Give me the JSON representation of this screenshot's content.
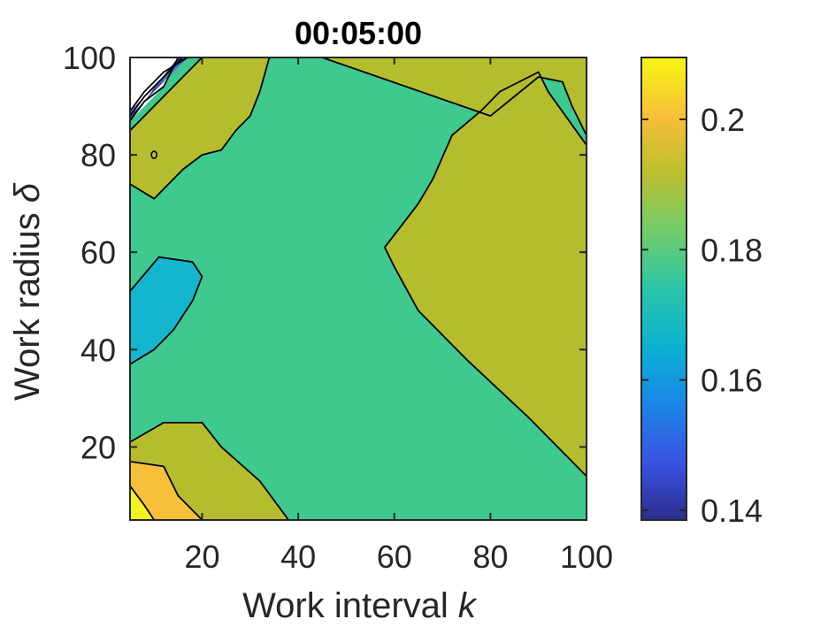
{
  "chart_data": {
    "type": "contourf",
    "title": "00:05:00",
    "xlabel": "Work interval",
    "xlabel_var": "k",
    "ylabel": "Work radius",
    "ylabel_var": "δ",
    "xlim": [
      5,
      100
    ],
    "ylim": [
      5,
      100
    ],
    "xticks": [
      20,
      40,
      60,
      80,
      100
    ],
    "yticks": [
      20,
      40,
      60,
      80,
      100
    ],
    "colorbar": {
      "range": [
        0.1385,
        0.2095
      ],
      "ticks": [
        0.14,
        0.16,
        0.18,
        0.2
      ],
      "tick_labels": [
        "0.14",
        "0.16",
        "0.18",
        "0.2"
      ],
      "colormap": "parula"
    },
    "regions": [
      {
        "name": "base",
        "level": 0.18,
        "color": "#3ec98f",
        "points": [
          [
            5,
            5
          ],
          [
            100,
            5
          ],
          [
            100,
            100
          ],
          [
            5,
            100
          ]
        ]
      },
      {
        "name": "upper-left",
        "level": 0.19,
        "color": "#b5bd2e",
        "points": [
          [
            5,
            100
          ],
          [
            5,
            85
          ],
          [
            8,
            88
          ],
          [
            12,
            92
          ],
          [
            16,
            96
          ],
          [
            20,
            100
          ],
          [
            34,
            100
          ],
          [
            32,
            93
          ],
          [
            30,
            88
          ],
          [
            27,
            85
          ],
          [
            24,
            81
          ],
          [
            20,
            80
          ],
          [
            16,
            77
          ],
          [
            10,
            71
          ],
          [
            5,
            74
          ]
        ]
      },
      {
        "name": "lower-left",
        "level": 0.19,
        "color": "#b5bd2e",
        "points": [
          [
            5,
            5
          ],
          [
            38,
            5
          ],
          [
            32,
            13
          ],
          [
            24,
            20
          ],
          [
            20,
            25
          ],
          [
            12,
            25
          ],
          [
            5,
            21
          ]
        ]
      },
      {
        "name": "right-wedge",
        "level": 0.19,
        "color": "#b5bd2e",
        "points": [
          [
            100,
            14
          ],
          [
            88,
            26
          ],
          [
            75,
            38
          ],
          [
            65,
            48
          ],
          [
            60,
            57
          ],
          [
            58,
            61
          ],
          [
            65,
            70
          ],
          [
            68,
            75
          ],
          [
            72,
            84
          ],
          [
            78,
            89
          ],
          [
            82,
            93
          ],
          [
            90,
            97
          ],
          [
            92,
            93
          ],
          [
            100,
            82
          ]
        ]
      },
      {
        "name": "top-corner",
        "level": 0.19,
        "color": "#b5bd2e",
        "points": [
          [
            45,
            100
          ],
          [
            100,
            100
          ],
          [
            100,
            84
          ],
          [
            97,
            90
          ],
          [
            95,
            95
          ],
          [
            90,
            96
          ],
          [
            80,
            88
          ]
        ]
      },
      {
        "name": "blue-pocket",
        "level": 0.17,
        "color": "#14b6cf",
        "points": [
          [
            5,
            37
          ],
          [
            10,
            40
          ],
          [
            14,
            44
          ],
          [
            18,
            50
          ],
          [
            20,
            55
          ],
          [
            18,
            58
          ],
          [
            11,
            59
          ],
          [
            5,
            52
          ]
        ]
      },
      {
        "name": "orange-corner",
        "level": 0.2,
        "color": "#f8c03a",
        "points": [
          [
            5,
            5
          ],
          [
            20,
            5
          ],
          [
            15,
            10
          ],
          [
            12,
            16
          ],
          [
            5,
            17
          ]
        ]
      },
      {
        "name": "yellow-corner",
        "level": 0.205,
        "color": "#f3f220",
        "points": [
          [
            5,
            5
          ],
          [
            10,
            5
          ],
          [
            8,
            8
          ],
          [
            5,
            12
          ]
        ]
      },
      {
        "name": "white-corner",
        "level": 0.14,
        "color": "#ffffff",
        "points": [
          [
            5,
            100
          ],
          [
            5,
            87
          ],
          [
            8,
            90
          ],
          [
            12,
            94
          ],
          [
            15,
            100
          ]
        ]
      },
      {
        "name": "navy-band",
        "level": 0.145,
        "color": "#3b3a9e",
        "points": [
          [
            5,
            87
          ],
          [
            8,
            91
          ],
          [
            11,
            95
          ],
          [
            15,
            100
          ],
          [
            16,
            100
          ],
          [
            12,
            95
          ],
          [
            8,
            91
          ],
          [
            5,
            88
          ]
        ]
      },
      {
        "name": "blue-band",
        "level": 0.155,
        "color": "#4f6bdc",
        "points": [
          [
            5,
            88
          ],
          [
            8,
            92
          ],
          [
            12,
            96
          ],
          [
            16,
            100
          ],
          [
            17,
            100
          ],
          [
            13,
            96
          ],
          [
            8,
            92
          ],
          [
            5,
            89
          ]
        ]
      }
    ],
    "contour_lines": [
      [
        [
          5,
          74
        ],
        [
          10,
          71
        ],
        [
          16,
          77
        ],
        [
          20,
          80
        ],
        [
          24,
          81
        ],
        [
          27,
          85
        ],
        [
          30,
          88
        ],
        [
          32,
          93
        ],
        [
          34,
          100
        ]
      ],
      [
        [
          5,
          85
        ],
        [
          8,
          88
        ],
        [
          12,
          92
        ],
        [
          16,
          96
        ],
        [
          20,
          100
        ]
      ],
      [
        [
          45,
          100
        ],
        [
          80,
          88
        ],
        [
          90,
          96
        ],
        [
          95,
          95
        ],
        [
          97,
          90
        ],
        [
          100,
          84
        ]
      ],
      [
        [
          100,
          14
        ],
        [
          88,
          26
        ],
        [
          75,
          38
        ],
        [
          65,
          48
        ],
        [
          60,
          57
        ],
        [
          58,
          61
        ],
        [
          65,
          70
        ],
        [
          68,
          75
        ],
        [
          72,
          84
        ],
        [
          78,
          89
        ],
        [
          82,
          93
        ],
        [
          90,
          97
        ],
        [
          92,
          93
        ],
        [
          100,
          82
        ]
      ],
      [
        [
          38,
          5
        ],
        [
          32,
          13
        ],
        [
          24,
          20
        ],
        [
          20,
          25
        ],
        [
          12,
          25
        ],
        [
          5,
          21
        ]
      ],
      [
        [
          5,
          37
        ],
        [
          10,
          40
        ],
        [
          14,
          44
        ],
        [
          18,
          50
        ],
        [
          20,
          55
        ],
        [
          18,
          58
        ],
        [
          11,
          59
        ],
        [
          5,
          52
        ]
      ],
      [
        [
          20,
          5
        ],
        [
          15,
          10
        ],
        [
          12,
          16
        ],
        [
          5,
          17
        ]
      ],
      [
        [
          10,
          5
        ],
        [
          8,
          8
        ],
        [
          5,
          12
        ]
      ],
      [
        [
          5,
          87
        ],
        [
          8,
          91
        ],
        [
          12,
          94
        ],
        [
          15,
          100
        ]
      ],
      [
        [
          5,
          88
        ],
        [
          8,
          92
        ],
        [
          12,
          96
        ],
        [
          16,
          100
        ]
      ],
      [
        [
          5,
          89
        ],
        [
          8,
          93
        ],
        [
          12,
          97
        ],
        [
          17,
          100
        ]
      ]
    ],
    "markers": [
      {
        "name": "small-loop",
        "x": 10,
        "y": 80
      }
    ]
  }
}
